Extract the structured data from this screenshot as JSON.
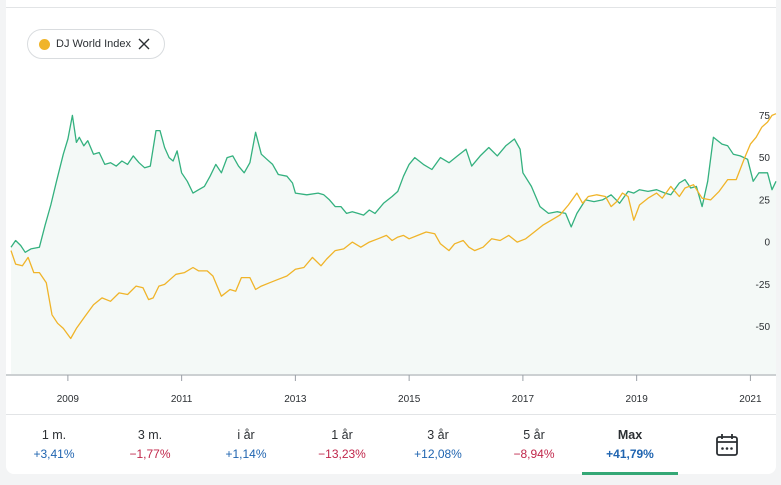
{
  "legend_chip": {
    "label": "DJ World Index",
    "dot_color": "#f0b429"
  },
  "colors": {
    "fund": "#34b17f",
    "index": "#f0b429",
    "positive": "#1f64b0",
    "negative": "#c0264a",
    "active_underline": "#34a876"
  },
  "periods": [
    {
      "label": "1 m.",
      "value": "+3,41%",
      "sign": "pos"
    },
    {
      "label": "3 m.",
      "value": "−1,77%",
      "sign": "neg"
    },
    {
      "label": "i år",
      "value": "+1,14%",
      "sign": "pos"
    },
    {
      "label": "1 år",
      "value": "−13,23%",
      "sign": "neg"
    },
    {
      "label": "3 år",
      "value": "+12,08%",
      "sign": "pos"
    },
    {
      "label": "5 år",
      "value": "−8,94%",
      "sign": "neg"
    },
    {
      "label": "Max",
      "value": "+41,79%",
      "sign": "pos",
      "active": true
    }
  ],
  "chart_data": {
    "type": "line",
    "xlim": [
      2008.0,
      2021.45
    ],
    "ylim": [
      -78,
      90
    ],
    "y_ticks": [
      75,
      50,
      25,
      0,
      -25,
      -50
    ],
    "x_ticks": [
      2009,
      2011,
      2013,
      2015,
      2017,
      2019,
      2021
    ],
    "grid": false,
    "series": [
      {
        "name": "",
        "color": "#34b17f",
        "fill": true,
        "points": [
          [
            2008.0,
            -3
          ],
          [
            2008.08,
            1
          ],
          [
            2008.17,
            -2
          ],
          [
            2008.25,
            -6
          ],
          [
            2008.35,
            -4
          ],
          [
            2008.5,
            -3
          ],
          [
            2008.6,
            10
          ],
          [
            2008.7,
            22
          ],
          [
            2008.8,
            36
          ],
          [
            2008.92,
            52
          ],
          [
            2009.0,
            61
          ],
          [
            2009.08,
            75
          ],
          [
            2009.15,
            59
          ],
          [
            2009.2,
            62
          ],
          [
            2009.28,
            57
          ],
          [
            2009.35,
            60
          ],
          [
            2009.45,
            52
          ],
          [
            2009.55,
            53
          ],
          [
            2009.65,
            46
          ],
          [
            2009.75,
            47
          ],
          [
            2009.85,
            45
          ],
          [
            2009.95,
            48
          ],
          [
            2010.05,
            46
          ],
          [
            2010.15,
            51
          ],
          [
            2010.25,
            47
          ],
          [
            2010.35,
            44
          ],
          [
            2010.45,
            45
          ],
          [
            2010.55,
            66
          ],
          [
            2010.62,
            66
          ],
          [
            2010.7,
            56
          ],
          [
            2010.78,
            50
          ],
          [
            2010.85,
            48
          ],
          [
            2010.92,
            54
          ],
          [
            2011.0,
            41
          ],
          [
            2011.1,
            36
          ],
          [
            2011.2,
            29
          ],
          [
            2011.3,
            31
          ],
          [
            2011.4,
            33
          ],
          [
            2011.5,
            39
          ],
          [
            2011.6,
            46
          ],
          [
            2011.7,
            41
          ],
          [
            2011.8,
            50
          ],
          [
            2011.9,
            51
          ],
          [
            2012.0,
            45
          ],
          [
            2012.1,
            41
          ],
          [
            2012.2,
            47
          ],
          [
            2012.3,
            65
          ],
          [
            2012.4,
            52
          ],
          [
            2012.5,
            49
          ],
          [
            2012.6,
            46
          ],
          [
            2012.7,
            40
          ],
          [
            2012.85,
            39
          ],
          [
            2012.95,
            35
          ],
          [
            2013.0,
            29
          ],
          [
            2013.2,
            28
          ],
          [
            2013.4,
            29
          ],
          [
            2013.5,
            28
          ],
          [
            2013.6,
            25
          ],
          [
            2013.7,
            21
          ],
          [
            2013.8,
            21
          ],
          [
            2013.9,
            17
          ],
          [
            2014.0,
            18
          ],
          [
            2014.1,
            17
          ],
          [
            2014.2,
            16
          ],
          [
            2014.3,
            19
          ],
          [
            2014.4,
            17
          ],
          [
            2014.55,
            23
          ],
          [
            2014.7,
            27
          ],
          [
            2014.8,
            30
          ],
          [
            2014.9,
            39
          ],
          [
            2015.0,
            46
          ],
          [
            2015.1,
            50
          ],
          [
            2015.25,
            46
          ],
          [
            2015.4,
            43
          ],
          [
            2015.55,
            50
          ],
          [
            2015.7,
            47
          ],
          [
            2015.85,
            51
          ],
          [
            2016.0,
            55
          ],
          [
            2016.1,
            45
          ],
          [
            2016.25,
            51
          ],
          [
            2016.4,
            56
          ],
          [
            2016.55,
            51
          ],
          [
            2016.7,
            57
          ],
          [
            2016.85,
            61
          ],
          [
            2016.95,
            55
          ],
          [
            2017.0,
            41
          ],
          [
            2017.15,
            33
          ],
          [
            2017.3,
            21
          ],
          [
            2017.45,
            17
          ],
          [
            2017.6,
            18
          ],
          [
            2017.75,
            17
          ],
          [
            2017.85,
            9
          ],
          [
            2017.95,
            17
          ],
          [
            2018.1,
            25
          ],
          [
            2018.25,
            24
          ],
          [
            2018.4,
            25
          ],
          [
            2018.55,
            28
          ],
          [
            2018.7,
            23
          ],
          [
            2018.85,
            30
          ],
          [
            2018.95,
            29
          ],
          [
            2019.05,
            31
          ],
          [
            2019.2,
            30
          ],
          [
            2019.35,
            31
          ],
          [
            2019.5,
            29
          ],
          [
            2019.6,
            28
          ],
          [
            2019.75,
            35
          ],
          [
            2019.85,
            37
          ],
          [
            2019.95,
            32
          ],
          [
            2020.05,
            33
          ],
          [
            2020.15,
            21
          ],
          [
            2020.25,
            36
          ],
          [
            2020.35,
            62
          ],
          [
            2020.5,
            58
          ],
          [
            2020.6,
            57
          ],
          [
            2020.7,
            52
          ],
          [
            2020.82,
            51
          ],
          [
            2020.95,
            49
          ],
          [
            2021.05,
            36
          ],
          [
            2021.15,
            41
          ],
          [
            2021.3,
            41
          ],
          [
            2021.38,
            31
          ],
          [
            2021.45,
            36
          ]
        ]
      },
      {
        "name": "DJ World Index",
        "color": "#f0b429",
        "fill": false,
        "points": [
          [
            2008.0,
            -5
          ],
          [
            2008.08,
            -13
          ],
          [
            2008.2,
            -14
          ],
          [
            2008.3,
            -9
          ],
          [
            2008.4,
            -18
          ],
          [
            2008.5,
            -18
          ],
          [
            2008.62,
            -24
          ],
          [
            2008.72,
            -43
          ],
          [
            2008.82,
            -48
          ],
          [
            2008.92,
            -51
          ],
          [
            2009.05,
            -57
          ],
          [
            2009.15,
            -51
          ],
          [
            2009.3,
            -44
          ],
          [
            2009.45,
            -37
          ],
          [
            2009.6,
            -33
          ],
          [
            2009.75,
            -35
          ],
          [
            2009.9,
            -30
          ],
          [
            2010.05,
            -31
          ],
          [
            2010.2,
            -26
          ],
          [
            2010.32,
            -27
          ],
          [
            2010.42,
            -34
          ],
          [
            2010.5,
            -33
          ],
          [
            2010.6,
            -26
          ],
          [
            2010.7,
            -25
          ],
          [
            2010.8,
            -22
          ],
          [
            2010.9,
            -19
          ],
          [
            2011.05,
            -18
          ],
          [
            2011.2,
            -15
          ],
          [
            2011.3,
            -17
          ],
          [
            2011.45,
            -17
          ],
          [
            2011.55,
            -20
          ],
          [
            2011.7,
            -32
          ],
          [
            2011.85,
            -28
          ],
          [
            2011.95,
            -29
          ],
          [
            2012.05,
            -21
          ],
          [
            2012.2,
            -21
          ],
          [
            2012.3,
            -28
          ],
          [
            2012.4,
            -26
          ],
          [
            2012.55,
            -24
          ],
          [
            2012.7,
            -22
          ],
          [
            2012.85,
            -20
          ],
          [
            2013.0,
            -16
          ],
          [
            2013.15,
            -15
          ],
          [
            2013.3,
            -9
          ],
          [
            2013.45,
            -14
          ],
          [
            2013.55,
            -10
          ],
          [
            2013.7,
            -5
          ],
          [
            2013.85,
            -4
          ],
          [
            2014.0,
            0
          ],
          [
            2014.15,
            -3
          ],
          [
            2014.3,
            0
          ],
          [
            2014.45,
            2
          ],
          [
            2014.6,
            4
          ],
          [
            2014.7,
            1
          ],
          [
            2014.8,
            3
          ],
          [
            2014.9,
            4
          ],
          [
            2015.0,
            2
          ],
          [
            2015.15,
            4
          ],
          [
            2015.3,
            6
          ],
          [
            2015.45,
            5
          ],
          [
            2015.55,
            -1
          ],
          [
            2015.7,
            -5
          ],
          [
            2015.8,
            -1
          ],
          [
            2015.95,
            1
          ],
          [
            2016.05,
            -3
          ],
          [
            2016.15,
            -5
          ],
          [
            2016.3,
            -3
          ],
          [
            2016.45,
            2
          ],
          [
            2016.6,
            1
          ],
          [
            2016.75,
            4
          ],
          [
            2016.9,
            0
          ],
          [
            2017.05,
            2
          ],
          [
            2017.2,
            6
          ],
          [
            2017.35,
            10
          ],
          [
            2017.5,
            13
          ],
          [
            2017.65,
            16
          ],
          [
            2017.8,
            22
          ],
          [
            2017.95,
            29
          ],
          [
            2018.05,
            23
          ],
          [
            2018.15,
            27
          ],
          [
            2018.3,
            28
          ],
          [
            2018.45,
            27
          ],
          [
            2018.55,
            21
          ],
          [
            2018.65,
            24
          ],
          [
            2018.75,
            29
          ],
          [
            2018.85,
            27
          ],
          [
            2018.95,
            13
          ],
          [
            2019.05,
            22
          ],
          [
            2019.2,
            26
          ],
          [
            2019.35,
            29
          ],
          [
            2019.45,
            26
          ],
          [
            2019.6,
            33
          ],
          [
            2019.75,
            27
          ],
          [
            2019.85,
            32
          ],
          [
            2020.0,
            34
          ],
          [
            2020.15,
            26
          ],
          [
            2020.3,
            25
          ],
          [
            2020.45,
            30
          ],
          [
            2020.6,
            37
          ],
          [
            2020.75,
            37
          ],
          [
            2020.9,
            50
          ],
          [
            2021.0,
            58
          ],
          [
            2021.1,
            62
          ],
          [
            2021.2,
            68
          ],
          [
            2021.3,
            71
          ],
          [
            2021.38,
            75
          ],
          [
            2021.45,
            76
          ]
        ]
      }
    ]
  }
}
